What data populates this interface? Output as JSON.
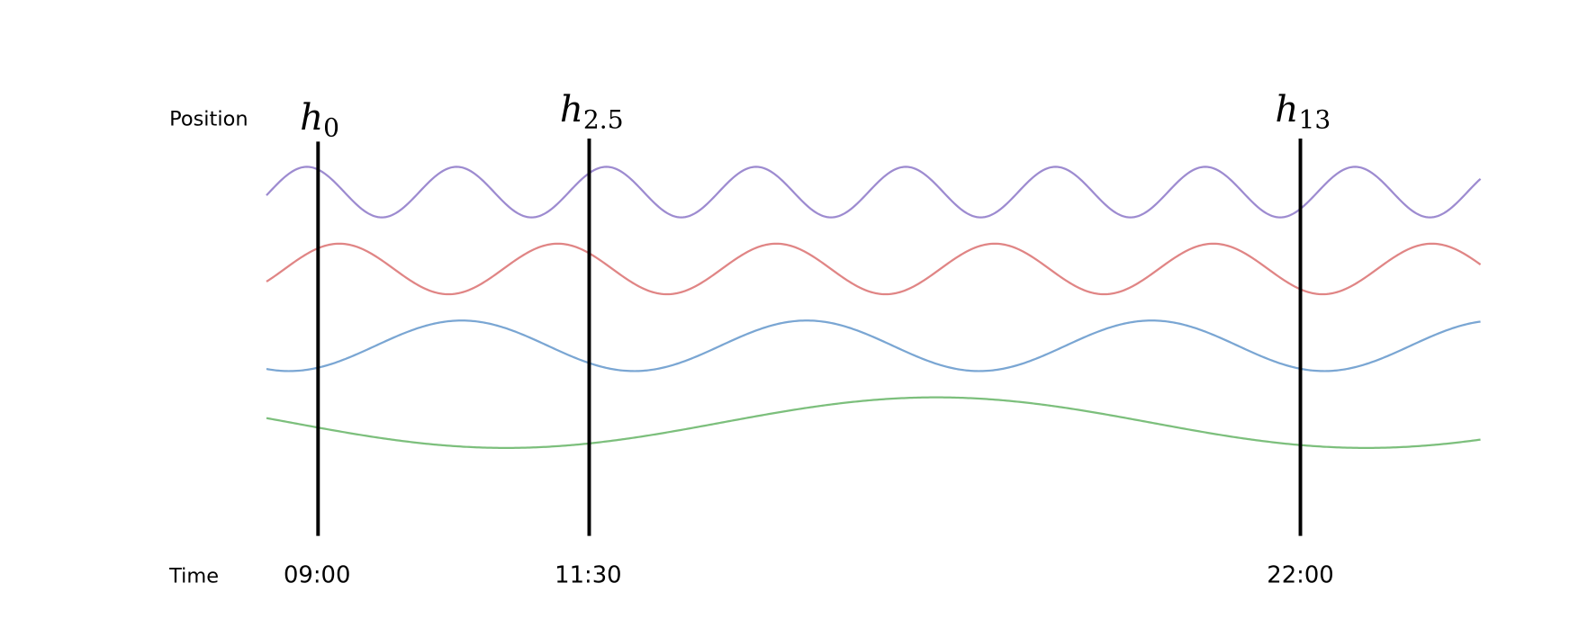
{
  "row_labels": {
    "position": "Position",
    "time": "Time"
  },
  "markers": [
    {
      "symbol": "h",
      "subscript": "0",
      "time": "09:00"
    },
    {
      "symbol": "h",
      "subscript": "2.5",
      "time": "11:30"
    },
    {
      "symbol": "h",
      "subscript": "13",
      "time": "22:00"
    }
  ]
}
